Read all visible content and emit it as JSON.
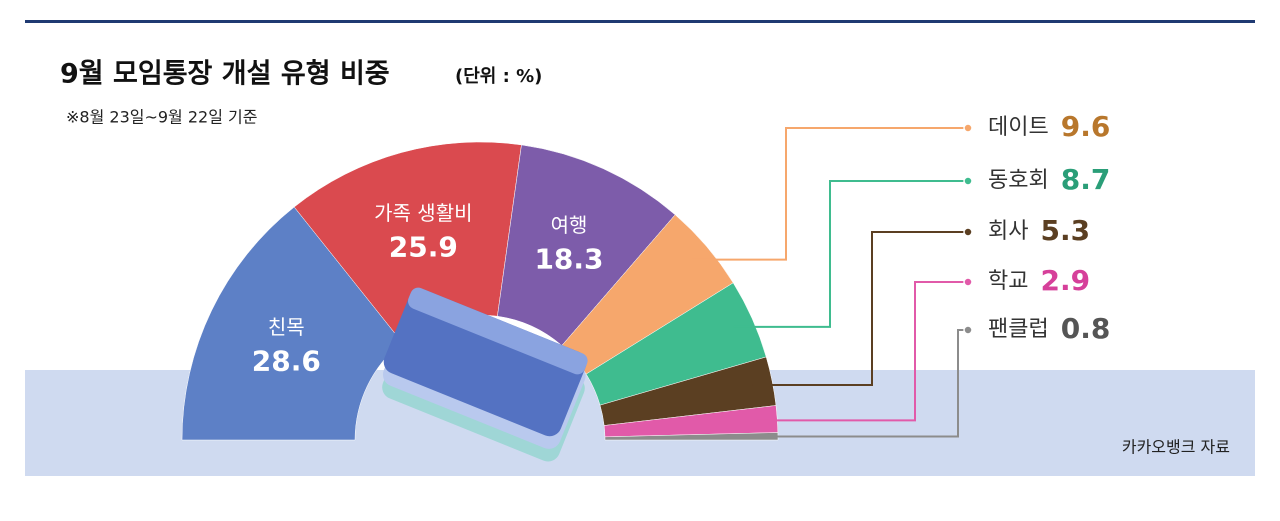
{
  "chart_data": {
    "type": "half-donut",
    "title": "9월 모임통장 개설 유형 비중",
    "unit": "(단위 : %)",
    "note": "※8월 23일~9월 22일 기준",
    "source": "카카오뱅크 자료",
    "categories": [
      "친목",
      "가족 생활비",
      "여행",
      "데이트",
      "동호회",
      "회사",
      "학교",
      "팬클럽"
    ],
    "values": [
      28.6,
      25.9,
      18.3,
      9.6,
      8.7,
      5.3,
      2.9,
      0.8
    ],
    "colors": [
      "#5d80c6",
      "#da4a4f",
      "#7d5caa",
      "#f6a76c",
      "#3fbc8f",
      "#5b3f22",
      "#e15aa9",
      "#8c8c8c"
    ],
    "label_colors": [
      "#ffffff",
      "#ffffff",
      "#ffffff",
      "#b8772c",
      "#2a9e78",
      "#5b3f22",
      "#d6409a",
      "#555555"
    ]
  }
}
